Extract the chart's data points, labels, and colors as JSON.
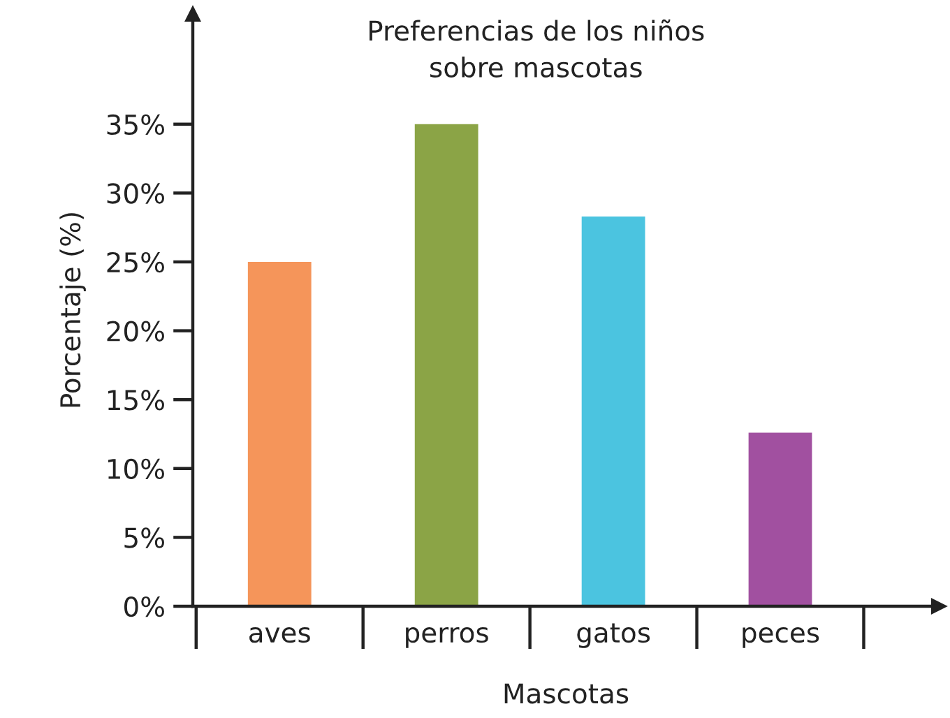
{
  "chart_data": {
    "type": "bar",
    "title": "Preferencias de los niños\nsobre mascotas",
    "xlabel": "Mascotas",
    "ylabel": "Porcentaje (%)",
    "categories": [
      "aves",
      "perros",
      "gatos",
      "peces"
    ],
    "values": [
      25,
      35,
      28.3,
      12.6
    ],
    "colors": [
      "#f5955a",
      "#8ba446",
      "#4bc4e0",
      "#a150a0"
    ],
    "ylim": [
      0,
      43
    ],
    "yticks": [
      {
        "value": 0,
        "label": "0%"
      },
      {
        "value": 5,
        "label": "5%"
      },
      {
        "value": 10,
        "label": "10%"
      },
      {
        "value": 15,
        "label": "15%"
      },
      {
        "value": 20,
        "label": "20%"
      },
      {
        "value": 25,
        "label": "25%"
      },
      {
        "value": 30,
        "label": "30%"
      },
      {
        "value": 35,
        "label": "35%"
      }
    ],
    "grid": false,
    "legend": false
  }
}
